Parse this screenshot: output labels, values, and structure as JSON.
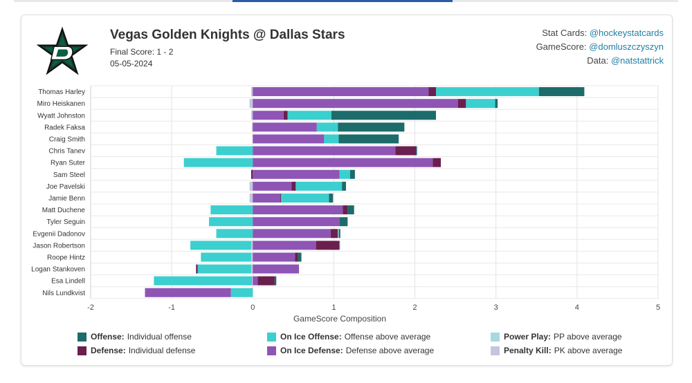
{
  "header": {
    "title": "Vegas Golden Knights @ Dallas Stars",
    "final_score": "Final Score: 1 - 2",
    "date": "05-05-2024",
    "credits": [
      {
        "label": "Stat Cards: ",
        "handle": "@hockeystatcards"
      },
      {
        "label": "GameScore: ",
        "handle": "@domluszczyszyn"
      },
      {
        "label": "Data: ",
        "handle": "@natstattrick"
      }
    ]
  },
  "colors": {
    "offense": "#1d6b6b",
    "defense": "#6b1f4f",
    "on_ice_offense": "#3ccfcf",
    "on_ice_defense": "#8e55b5",
    "power_play": "#a7d8df",
    "penalty_kill": "#c3c6dd"
  },
  "legend": [
    {
      "key": "offense",
      "bold": "Offense:",
      "text": "Individual offense"
    },
    {
      "key": "on_ice_offense",
      "bold": "On Ice Offense:",
      "text": "Offense above average"
    },
    {
      "key": "power_play",
      "bold": "Power Play:",
      "text": "PP above average"
    },
    {
      "key": "defense",
      "bold": "Defense:",
      "text": "Individual defense"
    },
    {
      "key": "on_ice_defense",
      "bold": "On Ice Defense:",
      "text": "Defense above average"
    },
    {
      "key": "penalty_kill",
      "bold": "Penalty Kill:",
      "text": "PK above average"
    }
  ],
  "chart_data": {
    "type": "bar",
    "orientation": "horizontal",
    "stacked": true,
    "xlabel": "GameScore Composition",
    "xlim": [
      -2,
      5
    ],
    "xticks": [
      -2,
      -1,
      0,
      1,
      2,
      3,
      4,
      5
    ],
    "grid": true,
    "legend_position": "bottom",
    "categories": [
      "Thomas Harley",
      "Miro Heiskanen",
      "Wyatt Johnston",
      "Radek Faksa",
      "Craig Smith",
      "Chris Tanev",
      "Ryan Suter",
      "Sam Steel",
      "Joe Pavelski",
      "Jamie Benn",
      "Matt Duchene",
      "Tyler Seguin",
      "Evgenii Dadonov",
      "Jason Robertson",
      "Roope Hintz",
      "Logan Stankoven",
      "Esa Lindell",
      "Nils Lundkvist"
    ],
    "series": [
      {
        "key": "penalty_kill",
        "name": "Penalty Kill",
        "values": [
          -0.02,
          -0.04,
          -0.02,
          -0.01,
          0,
          0,
          0,
          0,
          -0.04,
          -0.04,
          0,
          0,
          0,
          -0.02,
          -0.02,
          -0.02,
          -0.01,
          0
        ]
      },
      {
        "key": "on_ice_offense_neg",
        "name": "On Ice Offense",
        "values": [
          0,
          0,
          0,
          0,
          0,
          -0.45,
          -0.85,
          0,
          0,
          0,
          -0.52,
          -0.54,
          -0.45,
          -0.75,
          -0.62,
          -0.66,
          -1.21,
          -0.27
        ]
      },
      {
        "key": "on_ice_defense_neg",
        "name": "On Ice Defense",
        "values": [
          0,
          0,
          0,
          0,
          0,
          0,
          0,
          0,
          0,
          0,
          0,
          0,
          0,
          0,
          0,
          0,
          0,
          -1.06
        ]
      },
      {
        "key": "defense_neg",
        "name": "Defense",
        "values": [
          0,
          0,
          0,
          0,
          0,
          0,
          0,
          -0.02,
          0,
          0,
          0,
          0,
          0,
          0,
          0,
          -0.02,
          0,
          0
        ]
      },
      {
        "key": "on_ice_defense",
        "name": "On Ice Defense",
        "values": [
          2.17,
          2.53,
          0.38,
          0.79,
          0.88,
          1.76,
          2.22,
          1.07,
          0.48,
          0.34,
          1.11,
          1.07,
          0.96,
          0.78,
          0.52,
          0.57,
          0.06,
          0
        ]
      },
      {
        "key": "defense",
        "name": "Defense",
        "values": [
          0.09,
          0.1,
          0.05,
          0,
          0,
          0.26,
          0.1,
          0,
          0.05,
          0.01,
          0.06,
          0,
          0.09,
          0.29,
          0.04,
          0,
          0.21,
          0
        ]
      },
      {
        "key": "on_ice_offense",
        "name": "On Ice Offense",
        "values": [
          1.27,
          0.36,
          0.54,
          0.26,
          0.18,
          0.01,
          0,
          0.13,
          0.57,
          0.59,
          0,
          0,
          0,
          0,
          0,
          0,
          0,
          0
        ]
      },
      {
        "key": "power_play",
        "name": "Power Play",
        "values": [
          0,
          0,
          0,
          0,
          0,
          0,
          0,
          0,
          0,
          0,
          0,
          0,
          0.01,
          0.01,
          0,
          0,
          0,
          0
        ]
      },
      {
        "key": "offense",
        "name": "Offense",
        "values": [
          0.56,
          0.03,
          1.29,
          0.82,
          0.74,
          0,
          0,
          0.06,
          0.05,
          0.05,
          0.08,
          0.1,
          0.02,
          0,
          0.04,
          0,
          0.02,
          0
        ]
      }
    ]
  }
}
